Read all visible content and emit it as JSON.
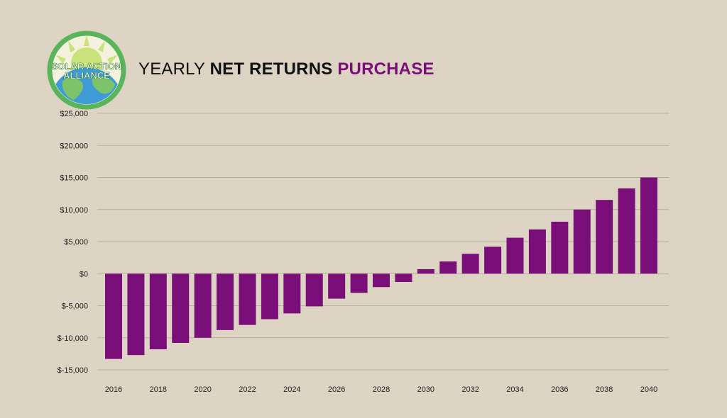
{
  "brand": {
    "logo_line1": "SOLAR ACTION",
    "logo_line2": "ALLIANCE",
    "logo_ring_color": "#5ab55a",
    "logo_sun_color": "#c9e27a",
    "logo_ocean_color": "#3e9bd6",
    "logo_land_color": "#7cc36a"
  },
  "title": {
    "part1": "YEARLY ",
    "part2": "NET RETURNS ",
    "part3": "PURCHASE"
  },
  "chart_data": {
    "type": "bar",
    "bar_color": "#7b0f7a",
    "grid": true,
    "ylim": [
      -15000,
      25000
    ],
    "y_ticks": [
      25000,
      20000,
      15000,
      10000,
      5000,
      0,
      -5000,
      -10000,
      -15000
    ],
    "y_tick_labels": [
      "$25,000",
      "$20,000",
      "$15,000",
      "$10,000",
      "$5,000",
      "$0",
      "$-5,000",
      "$-10,000",
      "$-15,000"
    ],
    "x_tick_labels": [
      "2016",
      "2018",
      "2020",
      "2022",
      "2024",
      "2026",
      "2028",
      "2030",
      "2032",
      "2034",
      "2036",
      "2038",
      "2040"
    ],
    "categories": [
      "2016",
      "2017",
      "2018",
      "2019",
      "2020",
      "2021",
      "2022",
      "2023",
      "2024",
      "2025",
      "2026",
      "2027",
      "2028",
      "2029",
      "2030",
      "2031",
      "2032",
      "2033",
      "2034",
      "2035",
      "2036",
      "2037",
      "2038",
      "2039",
      "2040"
    ],
    "values": [
      -13300,
      -12700,
      -11800,
      -10800,
      -10000,
      -8800,
      -8000,
      -7100,
      -6200,
      -5100,
      -3900,
      -3000,
      -2100,
      -1300,
      700,
      1900,
      3100,
      4200,
      5600,
      6900,
      8100,
      10000,
      11500,
      13300,
      15000
    ]
  }
}
